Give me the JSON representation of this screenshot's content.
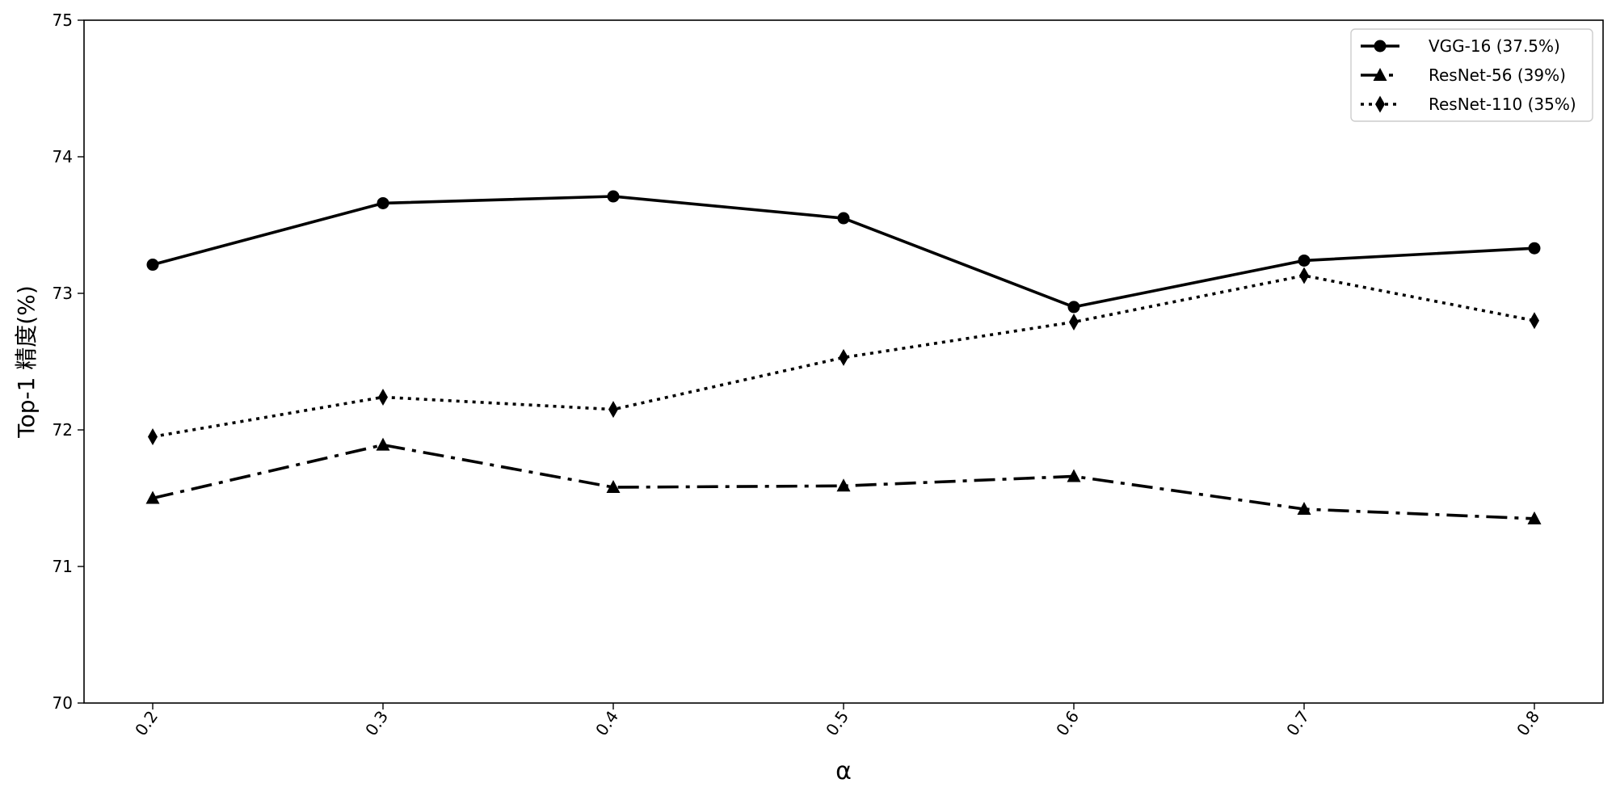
{
  "chart_data": {
    "type": "line",
    "title": "",
    "xlabel": "α",
    "ylabel": "Top-1 精度(%)",
    "x": [
      0.2,
      0.3,
      0.4,
      0.5,
      0.6,
      0.7,
      0.8
    ],
    "x_tick_labels": [
      "0.2",
      "0.3",
      "0.4",
      "0.5",
      "0.6",
      "0.7",
      "0.8"
    ],
    "ylim": [
      70,
      75
    ],
    "y_ticks": [
      70,
      71,
      72,
      73,
      74,
      75
    ],
    "y_tick_labels": [
      "70",
      "71",
      "72",
      "73",
      "74",
      "75"
    ],
    "grid": false,
    "legend_position": "top-right",
    "series": [
      {
        "name": "VGG-16 (37.5%)",
        "values": [
          73.21,
          73.66,
          73.71,
          73.55,
          72.9,
          73.24,
          73.33
        ],
        "line_style": "solid",
        "marker": "circle",
        "color": "#000000"
      },
      {
        "name": "ResNet-56 (39%)",
        "values": [
          71.5,
          71.89,
          71.58,
          71.59,
          71.66,
          71.42,
          71.35
        ],
        "line_style": "dashdot",
        "marker": "triangle",
        "color": "#000000"
      },
      {
        "name": "ResNet-110 (35%)",
        "values": [
          71.95,
          72.24,
          72.15,
          72.53,
          72.79,
          73.13,
          72.8
        ],
        "line_style": "dotted",
        "marker": "diamond",
        "color": "#000000"
      }
    ]
  }
}
